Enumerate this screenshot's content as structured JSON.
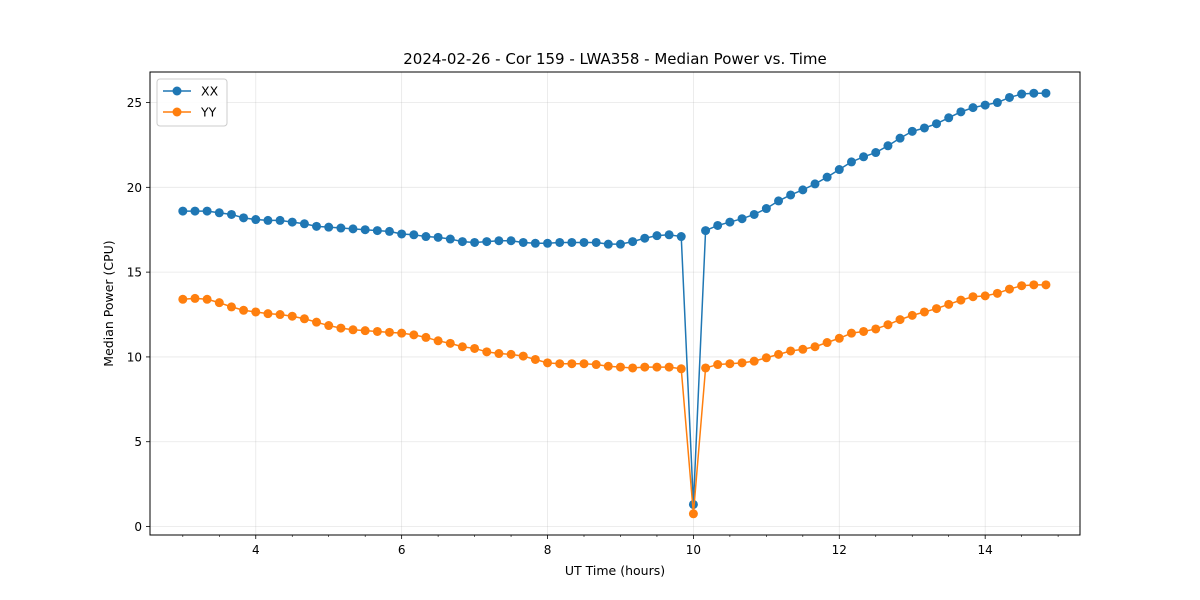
{
  "chart_data": {
    "type": "line",
    "title": "2024-02-26 - Cor 159 - LWA358 - Median Power vs. Time",
    "xlabel": "UT Time (hours)",
    "ylabel": "Median Power (CPU)",
    "xlim": [
      2.55,
      15.3
    ],
    "ylim": [
      -0.5,
      26.8
    ],
    "xticks": [
      4,
      6,
      8,
      10,
      12,
      14
    ],
    "xtick_labels": [
      "4",
      "6",
      "8",
      "10",
      "12",
      "14"
    ],
    "yticks": [
      0,
      5,
      10,
      15,
      20,
      25
    ],
    "ytick_labels": [
      "0",
      "5",
      "10",
      "15",
      "20",
      "25"
    ],
    "grid": true,
    "legend_position": "upper-left",
    "x": [
      3.0,
      3.167,
      3.333,
      3.5,
      3.667,
      3.833,
      4.0,
      4.167,
      4.333,
      4.5,
      4.667,
      4.833,
      5.0,
      5.167,
      5.333,
      5.5,
      5.667,
      5.833,
      6.0,
      6.167,
      6.333,
      6.5,
      6.667,
      6.833,
      7.0,
      7.167,
      7.333,
      7.5,
      7.667,
      7.833,
      8.0,
      8.167,
      8.333,
      8.5,
      8.667,
      8.833,
      9.0,
      9.167,
      9.333,
      9.5,
      9.667,
      9.833,
      10.0,
      10.167,
      10.333,
      10.5,
      10.667,
      10.833,
      11.0,
      11.167,
      11.333,
      11.5,
      11.667,
      11.833,
      12.0,
      12.167,
      12.333,
      12.5,
      12.667,
      12.833,
      13.0,
      13.167,
      13.333,
      13.5,
      13.667,
      13.833,
      14.0,
      14.167,
      14.333,
      14.5,
      14.667,
      14.833
    ],
    "series": [
      {
        "name": "XX",
        "color": "#1f77b4",
        "values": [
          18.6,
          18.6,
          18.6,
          18.5,
          18.4,
          18.2,
          18.1,
          18.05,
          18.05,
          17.95,
          17.85,
          17.7,
          17.65,
          17.6,
          17.55,
          17.5,
          17.45,
          17.4,
          17.25,
          17.2,
          17.1,
          17.05,
          16.95,
          16.8,
          16.75,
          16.8,
          16.85,
          16.85,
          16.75,
          16.7,
          16.7,
          16.75,
          16.75,
          16.75,
          16.75,
          16.65,
          16.65,
          16.8,
          17.0,
          17.15,
          17.2,
          17.1,
          1.3,
          17.45,
          17.75,
          17.95,
          18.15,
          18.4,
          18.75,
          19.2,
          19.55,
          19.85,
          20.2,
          20.6,
          21.05,
          21.5,
          21.8,
          22.05,
          22.45,
          22.9,
          23.3,
          23.5,
          23.75,
          24.1,
          24.45,
          24.7,
          24.85,
          25.0,
          25.3,
          25.5,
          25.55,
          25.55
        ]
      },
      {
        "name": "YY",
        "color": "#ff7f0e",
        "values": [
          13.4,
          13.45,
          13.4,
          13.2,
          12.95,
          12.75,
          12.65,
          12.55,
          12.5,
          12.4,
          12.25,
          12.05,
          11.85,
          11.7,
          11.6,
          11.55,
          11.5,
          11.45,
          11.4,
          11.3,
          11.15,
          10.95,
          10.8,
          10.6,
          10.5,
          10.3,
          10.2,
          10.15,
          10.05,
          9.85,
          9.65,
          9.6,
          9.6,
          9.6,
          9.55,
          9.45,
          9.4,
          9.35,
          9.4,
          9.4,
          9.4,
          9.3,
          0.75,
          9.35,
          9.55,
          9.6,
          9.65,
          9.75,
          9.95,
          10.15,
          10.35,
          10.45,
          10.6,
          10.85,
          11.1,
          11.4,
          11.5,
          11.65,
          11.9,
          12.2,
          12.45,
          12.65,
          12.85,
          13.1,
          13.35,
          13.55,
          13.6,
          13.75,
          14.0,
          14.2,
          14.25,
          14.25
        ]
      }
    ]
  }
}
